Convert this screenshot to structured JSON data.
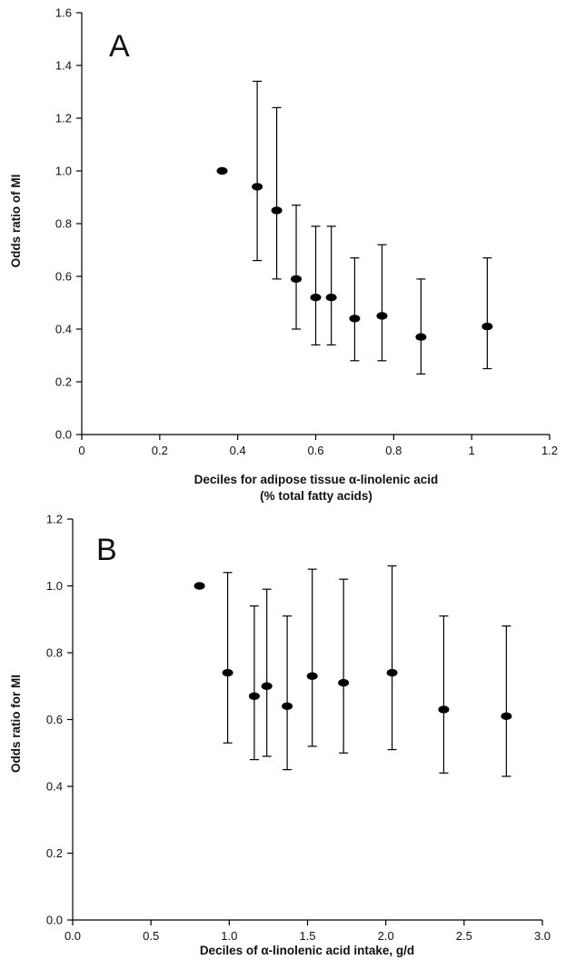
{
  "chart_data": [
    {
      "type": "scatter",
      "panel_label": "A",
      "xlabel": "Deciles for adipose tissue α-linolenic acid",
      "xlabel_line2": "(% total fatty acids)",
      "ylabel": "Odds ratio of MI",
      "xlim": [
        0,
        1.2
      ],
      "ylim": [
        0,
        1.6
      ],
      "x_ticks": [
        "0",
        "0.2",
        "0.4",
        "0.6",
        "0.8",
        "1",
        "1.2"
      ],
      "y_ticks": [
        "0.0",
        "0.2",
        "0.4",
        "0.6",
        "0.8",
        "1.0",
        "1.2",
        "1.4",
        "1.6"
      ],
      "grid": false,
      "legend": "none",
      "points": [
        {
          "x": 0.36,
          "y": 1.0,
          "lower": null,
          "upper": null
        },
        {
          "x": 0.45,
          "y": 0.94,
          "lower": 0.66,
          "upper": 1.34
        },
        {
          "x": 0.5,
          "y": 0.85,
          "lower": 0.59,
          "upper": 1.24
        },
        {
          "x": 0.55,
          "y": 0.59,
          "lower": 0.4,
          "upper": 0.87
        },
        {
          "x": 0.6,
          "y": 0.52,
          "lower": 0.34,
          "upper": 0.79
        },
        {
          "x": 0.64,
          "y": 0.52,
          "lower": 0.34,
          "upper": 0.79
        },
        {
          "x": 0.7,
          "y": 0.44,
          "lower": 0.28,
          "upper": 0.67
        },
        {
          "x": 0.77,
          "y": 0.45,
          "lower": 0.28,
          "upper": 0.72
        },
        {
          "x": 0.87,
          "y": 0.37,
          "lower": 0.23,
          "upper": 0.59
        },
        {
          "x": 1.04,
          "y": 0.41,
          "lower": 0.25,
          "upper": 0.67
        }
      ]
    },
    {
      "type": "scatter",
      "panel_label": "B",
      "xlabel": "Deciles of α-linolenic acid intake, g/d",
      "ylabel": "Odds ratio for MI",
      "xlim": [
        0,
        3.0
      ],
      "ylim": [
        0,
        1.2
      ],
      "x_ticks": [
        "0.0",
        "0.5",
        "1.0",
        "1.5",
        "2.0",
        "2.5",
        "3.0"
      ],
      "y_ticks": [
        "0.0",
        "0.2",
        "0.4",
        "0.6",
        "0.8",
        "1.0",
        "1.2"
      ],
      "grid": false,
      "legend": "none",
      "points": [
        {
          "x": 0.81,
          "y": 1.0,
          "lower": null,
          "upper": null
        },
        {
          "x": 0.99,
          "y": 0.74,
          "lower": 0.53,
          "upper": 1.04
        },
        {
          "x": 1.16,
          "y": 0.67,
          "lower": 0.48,
          "upper": 0.94
        },
        {
          "x": 1.24,
          "y": 0.7,
          "lower": 0.49,
          "upper": 0.99
        },
        {
          "x": 1.37,
          "y": 0.64,
          "lower": 0.45,
          "upper": 0.91
        },
        {
          "x": 1.53,
          "y": 0.73,
          "lower": 0.52,
          "upper": 1.05
        },
        {
          "x": 1.73,
          "y": 0.71,
          "lower": 0.5,
          "upper": 1.02
        },
        {
          "x": 2.04,
          "y": 0.74,
          "lower": 0.51,
          "upper": 1.06
        },
        {
          "x": 2.37,
          "y": 0.63,
          "lower": 0.44,
          "upper": 0.91
        },
        {
          "x": 2.77,
          "y": 0.61,
          "lower": 0.43,
          "upper": 0.88
        }
      ]
    }
  ]
}
